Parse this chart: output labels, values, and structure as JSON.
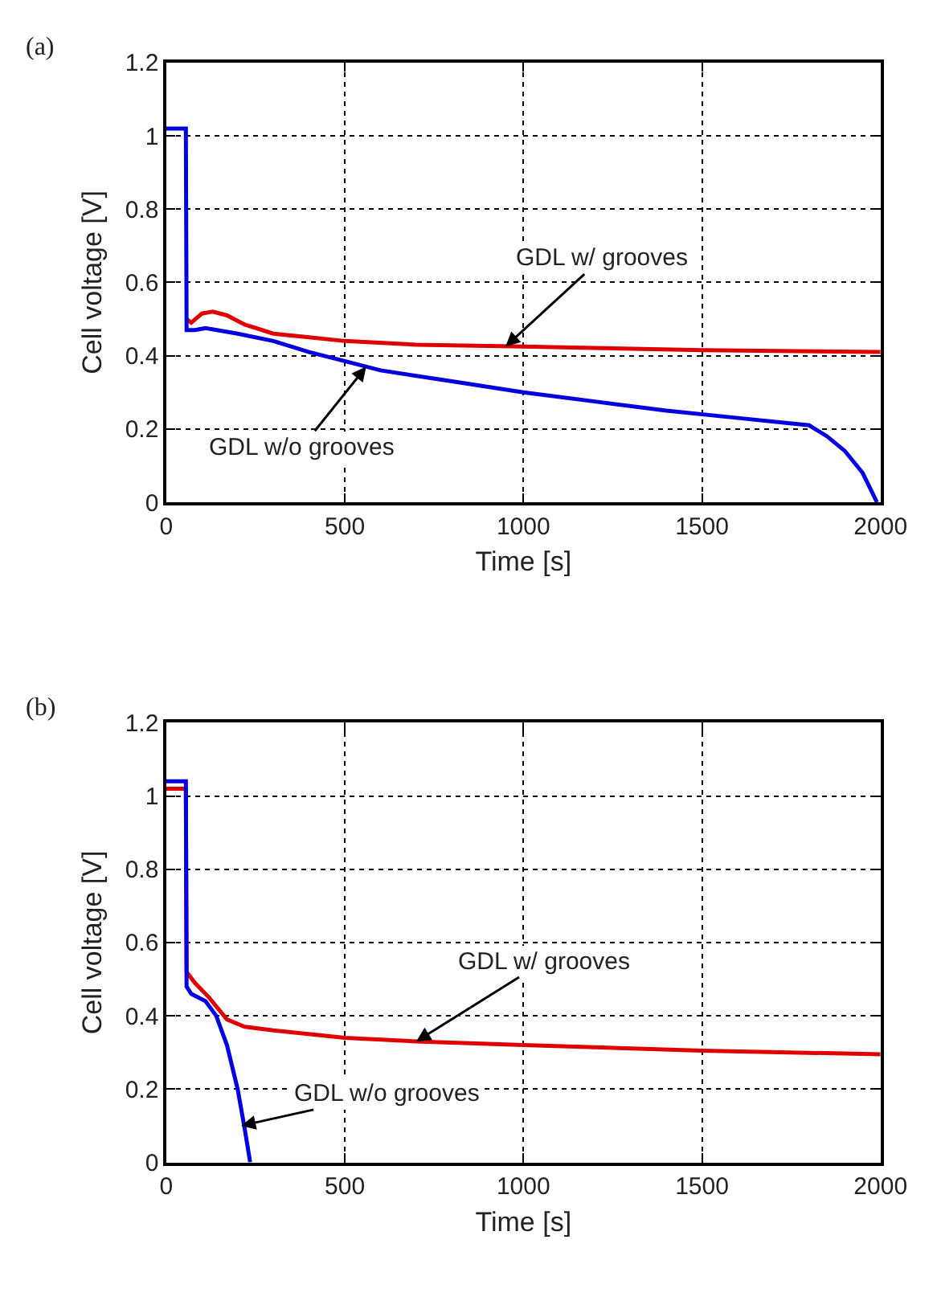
{
  "chart_data": [
    {
      "type": "line",
      "title": "(a)",
      "xlabel": "Time [s]",
      "ylabel": "Cell voltage [V]",
      "xlim": [
        0,
        2000
      ],
      "xticks": [
        0,
        500,
        1000,
        1500,
        2000
      ],
      "ylim": [
        0,
        1.2
      ],
      "yticks": [
        0,
        0.2,
        0.4,
        0.6,
        0.8,
        1,
        1.2
      ],
      "grid": true,
      "marker": "none",
      "line_style": "solid",
      "series": [
        {
          "color": "#e00000",
          "x": [
            57,
            70,
            100,
            130,
            170,
            220,
            300,
            400,
            500,
            700,
            1000,
            1500,
            2000
          ],
          "values": [
            0.5,
            0.49,
            0.515,
            0.52,
            0.51,
            0.485,
            0.46,
            0.45,
            0.44,
            0.43,
            0.425,
            0.415,
            0.41
          ]
        },
        {
          "color": "#0000e0",
          "x": [
            0,
            55,
            57,
            80,
            110,
            200,
            300,
            400,
            500,
            600,
            800,
            1000,
            1200,
            1400,
            1600,
            1800,
            1850,
            1900,
            1950,
            1990
          ],
          "values": [
            1.02,
            1.02,
            0.47,
            0.47,
            0.475,
            0.46,
            0.44,
            0.41,
            0.385,
            0.36,
            0.33,
            0.3,
            0.275,
            0.25,
            0.23,
            0.21,
            0.18,
            0.14,
            0.08,
            0
          ]
        }
      ],
      "annotations": [
        {
          "text": "GDL w/ grooves",
          "x": 950,
          "y": 0.425
        },
        {
          "text": "GDL w/o grooves",
          "x": 560,
          "y": 0.37
        }
      ]
    },
    {
      "type": "line",
      "title": "(b)",
      "xlabel": "Time [s]",
      "ylabel": "Cell voltage [V]",
      "xlim": [
        0,
        2000
      ],
      "xticks": [
        0,
        500,
        1000,
        1500,
        2000
      ],
      "ylim": [
        0,
        1.2
      ],
      "yticks": [
        0,
        0.2,
        0.4,
        0.6,
        0.8,
        1,
        1.2
      ],
      "grid": true,
      "marker": "none",
      "line_style": "solid",
      "series": [
        {
          "color": "#e00000",
          "x": [
            0,
            55,
            57,
            80,
            120,
            170,
            220,
            300,
            500,
            700,
            1000,
            1500,
            2000
          ],
          "values": [
            1.02,
            1.02,
            0.52,
            0.49,
            0.45,
            0.39,
            0.37,
            0.36,
            0.34,
            0.33,
            0.32,
            0.305,
            0.295
          ]
        },
        {
          "color": "#0000e0",
          "x": [
            0,
            55,
            57,
            70,
            110,
            140,
            170,
            200,
            220,
            235
          ],
          "values": [
            1.04,
            1.04,
            0.48,
            0.46,
            0.44,
            0.4,
            0.32,
            0.2,
            0.09,
            0
          ]
        }
      ],
      "annotations": [
        {
          "text": "GDL w/ grooves",
          "x": 700,
          "y": 0.33
        },
        {
          "text": "GDL w/o grooves",
          "x": 210,
          "y": 0.1
        }
      ]
    }
  ]
}
